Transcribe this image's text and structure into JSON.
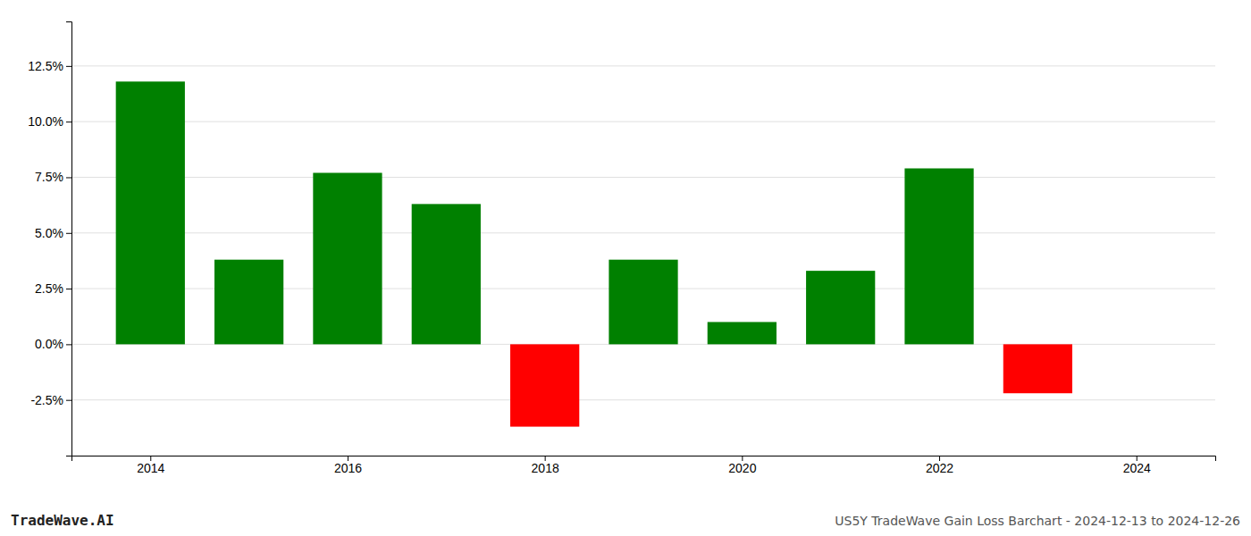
{
  "chart_data": {
    "type": "bar",
    "x": [
      2014,
      2015,
      2016,
      2017,
      2018,
      2019,
      2020,
      2021,
      2022,
      2023
    ],
    "values": [
      0.118,
      0.038,
      0.077,
      0.063,
      -0.037,
      0.038,
      0.01,
      0.033,
      0.079,
      -0.022
    ],
    "colors": [
      "#008000",
      "#008000",
      "#008000",
      "#008000",
      "#ff0000",
      "#008000",
      "#008000",
      "#008000",
      "#008000",
      "#ff0000"
    ],
    "ylim": [
      -0.05,
      0.145
    ],
    "yticks": [
      {
        "value": -0.025,
        "label": "-2.5%"
      },
      {
        "value": 0.0,
        "label": "0.0%"
      },
      {
        "value": 0.025,
        "label": "2.5%"
      },
      {
        "value": 0.05,
        "label": "5.0%"
      },
      {
        "value": 0.075,
        "label": "7.5%"
      },
      {
        "value": 0.1,
        "label": "10.0%"
      },
      {
        "value": 0.125,
        "label": "12.5%"
      }
    ],
    "xlim": [
      2013.2,
      2024.8
    ],
    "xticks": [
      2014,
      2016,
      2018,
      2020,
      2022,
      2024
    ],
    "grid": true,
    "annotations": [
      "TradeWave.AI",
      "US5Y TradeWave Gain Loss Barchart - 2024-12-13 to 2024-12-26"
    ]
  }
}
